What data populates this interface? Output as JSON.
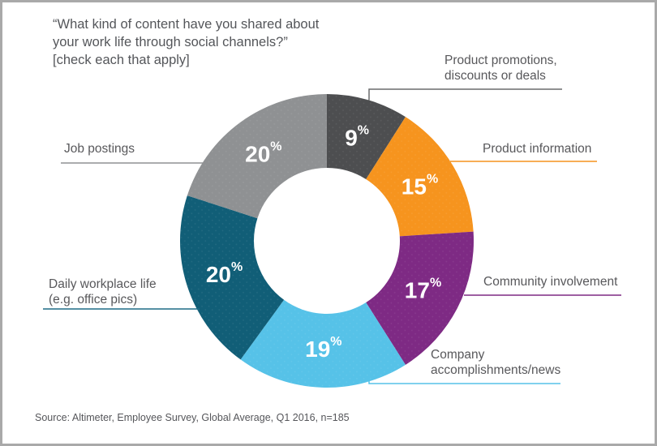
{
  "frame": {
    "border_color": "#a9a9a9",
    "background": "#ffffff"
  },
  "title": {
    "text": "“What kind of content have you shared about\nyour work life through social channels?”\n[check each that apply]"
  },
  "source": "Source: Altimeter, Employee Survey, Global Average, Q1 2016, n=185",
  "chart_data": {
    "type": "pie",
    "variant": "donut",
    "title": "“What kind of content have you shared about your work life through social channels?” [check each that apply]",
    "source": "Source: Altimeter, Employee Survey, Global Average, Q1 2016, n=185",
    "start_angle_deg": 0,
    "direction": "clockwise",
    "unit": "%",
    "categories": [
      "Product promotions, discounts or deals",
      "Product information",
      "Community involvement",
      "Company accomplishments/news",
      "Daily workplace life (e.g. office pics)",
      "Job postings"
    ],
    "values": [
      9,
      15,
      17,
      19,
      20,
      20
    ],
    "colors": [
      "#4d4e50",
      "#f6941e",
      "#7e2a84",
      "#56c2e8",
      "#115e77",
      "#8f9193"
    ],
    "value_label_color": "#ffffff",
    "legend_position": "callout-labels"
  },
  "callouts": [
    {
      "text": "Product promotions,\ndiscounts or deals",
      "line_color": "#6a6b6d"
    },
    {
      "text": "Product information",
      "line_color": "#f6941e"
    },
    {
      "text": "Community involvement",
      "line_color": "#7e2a84"
    },
    {
      "text": "Company\naccomplishments/news",
      "line_color": "#56c2e8"
    },
    {
      "text": "Daily workplace life\n(e.g. office pics)",
      "line_color": "#1d6b86"
    },
    {
      "text": "Job postings",
      "line_color": "#8f9193"
    }
  ]
}
